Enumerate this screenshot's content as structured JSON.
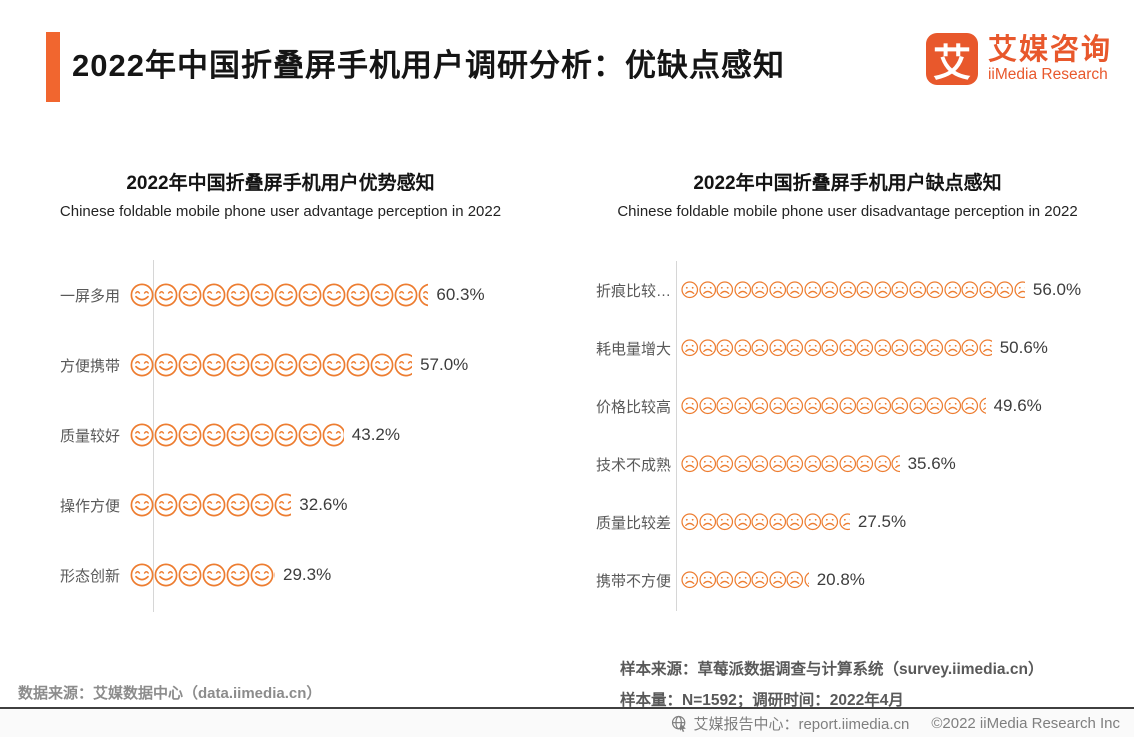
{
  "header": {
    "title": "2022年中国折叠屏手机用户调研分析：优缺点感知",
    "logo": {
      "mark": "艾",
      "name_cn": "艾媒咨询",
      "name_en": "iiMedia Research"
    },
    "accent_color": "#f1662f"
  },
  "chart_data": [
    {
      "type": "bar",
      "style": "pictogram-smiley",
      "title": "2022年中国折叠屏手机用户优势感知",
      "subtitle": "Chinese foldable mobile phone user advantage perception in 2022",
      "categories": [
        "一屏多用",
        "方便携带",
        "质量较好",
        "操作方便",
        "形态创新"
      ],
      "values": [
        60.3,
        57.0,
        43.2,
        32.6,
        29.3
      ],
      "value_labels": [
        "60.3%",
        "57.0%",
        "43.2%",
        "32.6%",
        "29.3%"
      ],
      "percent_per_icon": 4.85,
      "icon": "smiley-face",
      "icon_color": "#ED7D31",
      "xlim": [
        0,
        65
      ],
      "orientation": "horizontal"
    },
    {
      "type": "bar",
      "style": "pictogram-frown",
      "title": "2022年中国折叠屏手机用户缺点感知",
      "subtitle": "Chinese foldable mobile phone user disadvantage perception in 2022",
      "categories": [
        "折痕比较…",
        "耗电量增大",
        "价格比较高",
        "技术不成熟",
        "质量比较差",
        "携带不方便"
      ],
      "values": [
        56.0,
        50.6,
        49.6,
        35.6,
        27.5,
        20.8
      ],
      "value_labels": [
        "56.0%",
        "50.6%",
        "49.6%",
        "35.6%",
        "27.5%",
        "20.8%"
      ],
      "percent_per_icon": 2.85,
      "icon": "frown-face",
      "icon_color": "#ED7D31",
      "xlim": [
        0,
        60
      ],
      "orientation": "horizontal"
    }
  ],
  "footer": {
    "left_source": "数据来源：艾媒数据中心（data.iimedia.cn）",
    "sample_source": "样本来源：草莓派数据调查与计算系统（survey.iimedia.cn）",
    "sample_info": "样本量：N=1592；调研时间：2022年4月",
    "report_center": "艾媒报告中心：report.iimedia.cn",
    "copyright": "©2022 iiMedia Research Inc"
  }
}
